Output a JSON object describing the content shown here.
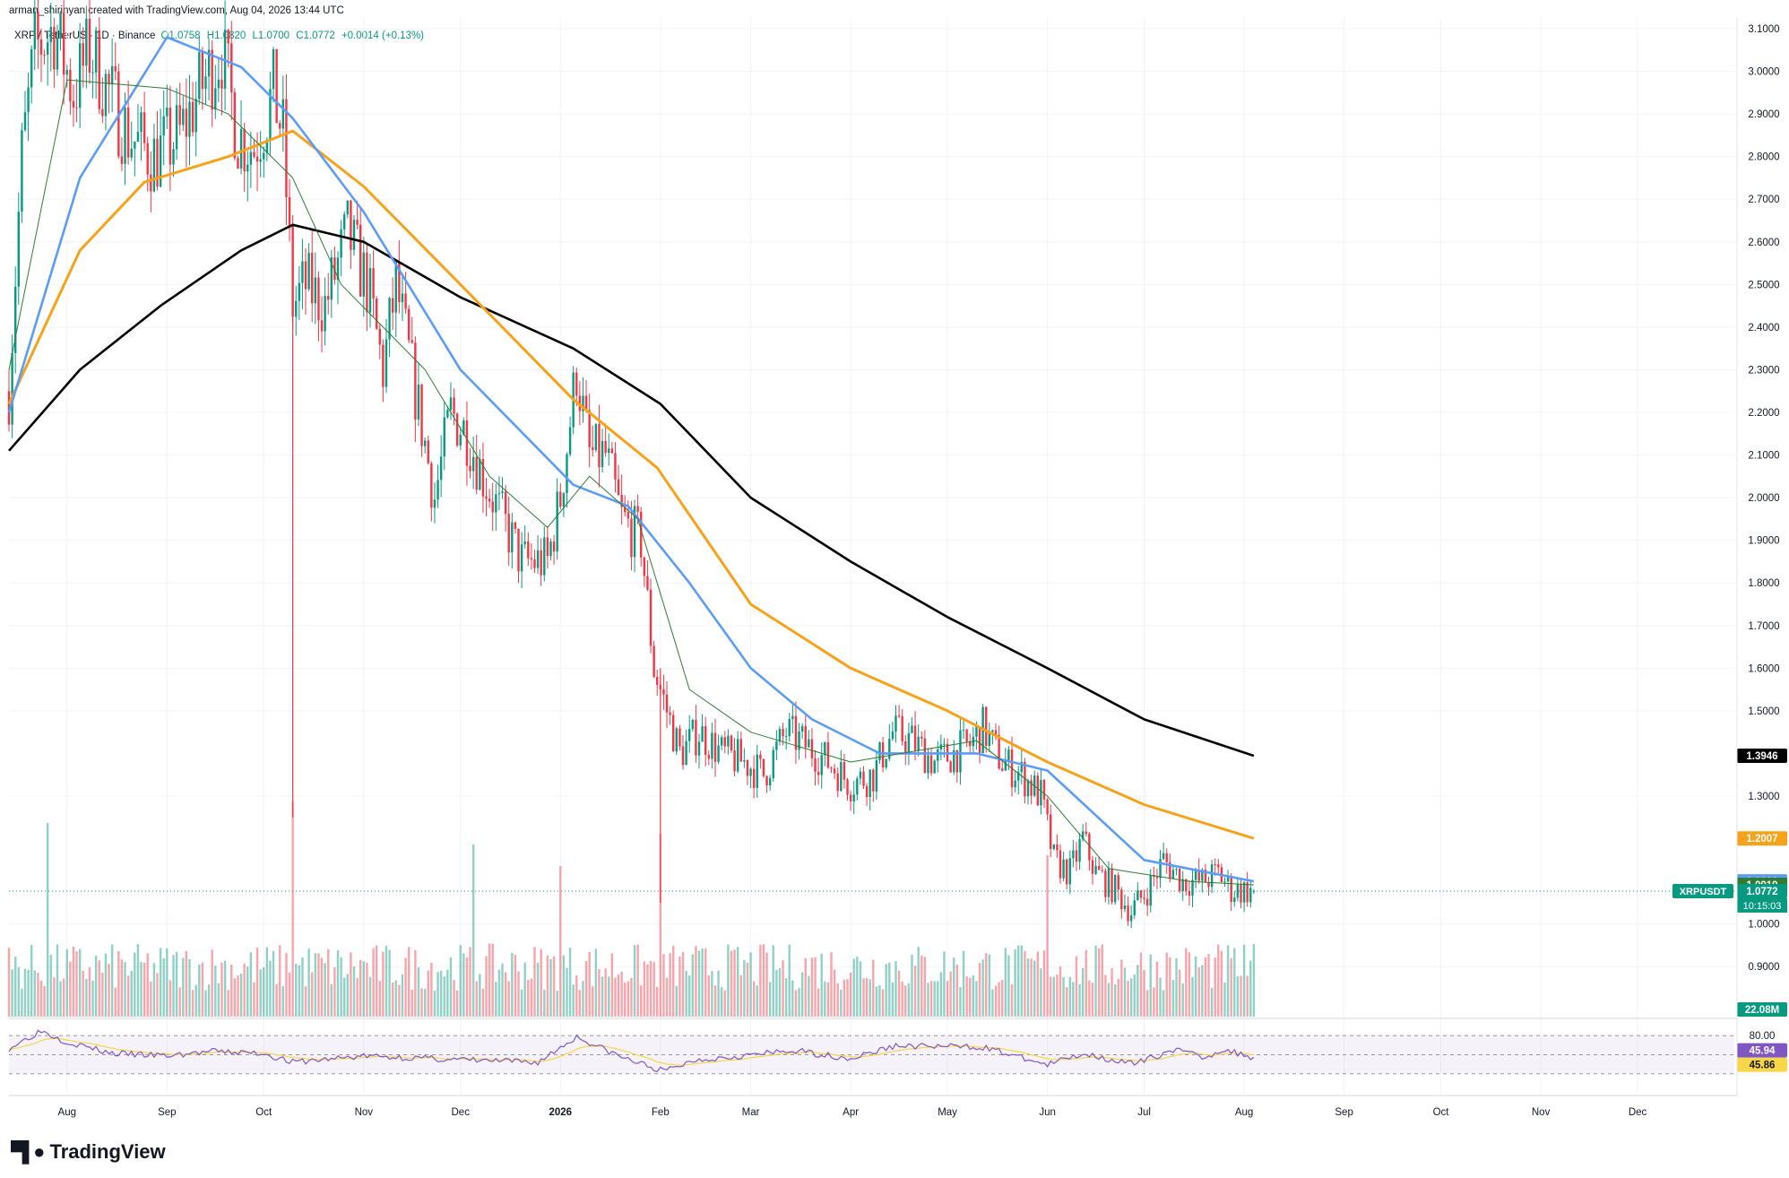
{
  "header": {
    "created_by": "arman_shirinyan created with TradingView.com, Aug 04, 2026 13:44 UTC"
  },
  "legend": {
    "symbol": "XRP / TetherUS · 1D · Binance",
    "open": "O1.0758",
    "high": "H1.0820",
    "low": "L1.0700",
    "close": "C1.0772",
    "change": "+0.0014 (+0.13%)"
  },
  "brand": {
    "name": "TradingView",
    "logo": "tv-logo-icon"
  },
  "colors": {
    "up": "#089981",
    "down": "#f23645",
    "sma200": "#000000",
    "sma100": "#f7a21b",
    "sma50": "#5b9cf6",
    "ema20": "#2e7d32",
    "rsi": "#7e57c2",
    "rsi_ma": "#f7d64a"
  },
  "chart_data": [
    {
      "type": "candlestick",
      "title": "",
      "x_axis": {
        "ticks": [
          "Aug",
          "Sep",
          "Oct",
          "Nov",
          "Dec",
          "2026",
          "Feb",
          "Mar",
          "Apr",
          "May",
          "Jun",
          "Jul",
          "Aug",
          "Sep",
          "Oct",
          "Nov",
          "Dec"
        ],
        "range": [
          "2025-07-14",
          "2026-12-31"
        ]
      },
      "y_axis": {
        "ticks": [
          "3.1000",
          "3.0000",
          "2.9000",
          "2.8000",
          "2.7000",
          "2.6000",
          "2.5000",
          "2.4000",
          "2.3000",
          "2.2000",
          "2.1000",
          "2.0000",
          "1.9000",
          "1.8000",
          "1.7000",
          "1.6000",
          "1.5000",
          "1.3000",
          "1.0000",
          "0.9000"
        ],
        "range": [
          0.85,
          3.1
        ],
        "position": "right"
      },
      "price_path": [
        [
          "2025-07-14",
          2.25
        ],
        [
          "2025-07-18",
          2.8
        ],
        [
          "2025-07-22",
          3.05
        ],
        [
          "2025-07-28",
          3.1
        ],
        [
          "2025-08-03",
          2.95
        ],
        [
          "2025-08-08",
          3.05
        ],
        [
          "2025-08-14",
          2.95
        ],
        [
          "2025-08-20",
          2.85
        ],
        [
          "2025-08-28",
          2.8
        ],
        [
          "2025-09-05",
          2.85
        ],
        [
          "2025-09-12",
          2.97
        ],
        [
          "2025-09-18",
          3.05
        ],
        [
          "2025-09-23",
          2.85
        ],
        [
          "2025-09-28",
          2.82
        ],
        [
          "2025-10-04",
          2.95
        ],
        [
          "2025-10-07",
          2.85
        ],
        [
          "2025-10-10",
          2.45
        ],
        [
          "2025-10-14",
          2.5
        ],
        [
          "2025-10-20",
          2.45
        ],
        [
          "2025-10-27",
          2.62
        ],
        [
          "2025-11-02",
          2.5
        ],
        [
          "2025-11-07",
          2.3
        ],
        [
          "2025-11-11",
          2.5
        ],
        [
          "2025-11-17",
          2.25
        ],
        [
          "2025-11-23",
          2.0
        ],
        [
          "2025-11-28",
          2.2
        ],
        [
          "2025-12-03",
          2.15
        ],
        [
          "2025-12-08",
          2.05
        ],
        [
          "2025-12-14",
          1.95
        ],
        [
          "2025-12-20",
          1.85
        ],
        [
          "2025-12-28",
          1.85
        ],
        [
          "2026-01-01",
          2.0
        ],
        [
          "2026-01-06",
          2.3
        ],
        [
          "2026-01-10",
          2.1
        ],
        [
          "2026-01-15",
          2.1
        ],
        [
          "2026-01-20",
          1.95
        ],
        [
          "2026-01-26",
          1.9
        ],
        [
          "2026-01-30",
          1.6
        ],
        [
          "2026-02-03",
          1.5
        ],
        [
          "2026-02-07",
          1.4
        ],
        [
          "2026-02-13",
          1.45
        ],
        [
          "2026-02-20",
          1.4
        ],
        [
          "2026-02-27",
          1.38
        ],
        [
          "2026-03-05",
          1.35
        ],
        [
          "2026-03-12",
          1.45
        ],
        [
          "2026-03-18",
          1.42
        ],
        [
          "2026-03-25",
          1.38
        ],
        [
          "2026-04-01",
          1.33
        ],
        [
          "2026-04-08",
          1.35
        ],
        [
          "2026-04-14",
          1.45
        ],
        [
          "2026-04-20",
          1.43
        ],
        [
          "2026-04-27",
          1.38
        ],
        [
          "2026-05-03",
          1.4
        ],
        [
          "2026-05-08",
          1.42
        ],
        [
          "2026-05-12",
          1.46
        ],
        [
          "2026-05-18",
          1.38
        ],
        [
          "2026-05-24",
          1.35
        ],
        [
          "2026-05-30",
          1.3
        ],
        [
          "2026-06-03",
          1.15
        ],
        [
          "2026-06-08",
          1.12
        ],
        [
          "2026-06-12",
          1.2
        ],
        [
          "2026-06-16",
          1.12
        ],
        [
          "2026-06-22",
          1.08
        ],
        [
          "2026-06-27",
          1.03
        ],
        [
          "2026-07-02",
          1.08
        ],
        [
          "2026-07-07",
          1.15
        ],
        [
          "2026-07-13",
          1.1
        ],
        [
          "2026-07-19",
          1.1
        ],
        [
          "2026-07-24",
          1.12
        ],
        [
          "2026-07-28",
          1.08
        ],
        [
          "2026-08-04",
          1.0772
        ]
      ],
      "moving_averages": [
        {
          "key": "sma200",
          "points": [
            [
              "2025-07-14",
              2.11
            ],
            [
              "2025-08-05",
              2.3
            ],
            [
              "2025-08-30",
              2.45
            ],
            [
              "2025-09-24",
              2.58
            ],
            [
              "2025-10-10",
              2.64
            ],
            [
              "2025-11-01",
              2.6
            ],
            [
              "2025-12-01",
              2.47
            ],
            [
              "2026-01-05",
              2.35
            ],
            [
              "2026-02-01",
              2.22
            ],
            [
              "2026-03-01",
              2.0
            ],
            [
              "2026-04-01",
              1.85
            ],
            [
              "2026-05-01",
              1.72
            ],
            [
              "2026-06-01",
              1.6
            ],
            [
              "2026-07-01",
              1.48
            ],
            [
              "2026-08-04",
              1.3946
            ]
          ]
        },
        {
          "key": "sma100",
          "points": [
            [
              "2025-07-14",
              2.22
            ],
            [
              "2025-08-05",
              2.58
            ],
            [
              "2025-08-25",
              2.74
            ],
            [
              "2025-09-20",
              2.8
            ],
            [
              "2025-10-10",
              2.86
            ],
            [
              "2025-11-01",
              2.73
            ],
            [
              "2025-12-01",
              2.5
            ],
            [
              "2026-01-05",
              2.23
            ],
            [
              "2026-01-31",
              2.07
            ],
            [
              "2026-03-01",
              1.75
            ],
            [
              "2026-04-01",
              1.6
            ],
            [
              "2026-05-01",
              1.5
            ],
            [
              "2026-06-01",
              1.38
            ],
            [
              "2026-07-01",
              1.28
            ],
            [
              "2026-08-04",
              1.2007
            ]
          ]
        },
        {
          "key": "sma50",
          "points": [
            [
              "2025-07-14",
              2.2
            ],
            [
              "2025-08-05",
              2.75
            ],
            [
              "2025-09-01",
              3.08
            ],
            [
              "2025-09-24",
              3.01
            ],
            [
              "2025-10-10",
              2.89
            ],
            [
              "2025-11-01",
              2.67
            ],
            [
              "2025-12-01",
              2.3
            ],
            [
              "2026-01-05",
              2.03
            ],
            [
              "2026-01-22",
              1.98
            ],
            [
              "2026-02-10",
              1.8
            ],
            [
              "2026-03-01",
              1.6
            ],
            [
              "2026-03-20",
              1.48
            ],
            [
              "2026-04-10",
              1.4
            ],
            [
              "2026-05-10",
              1.4
            ],
            [
              "2026-06-01",
              1.36
            ],
            [
              "2026-07-01",
              1.15
            ],
            [
              "2026-08-04",
              1.1
            ]
          ]
        },
        {
          "key": "ema20",
          "points": [
            [
              "2025-07-14",
              2.3
            ],
            [
              "2025-08-01",
              2.98
            ],
            [
              "2025-09-01",
              2.96
            ],
            [
              "2025-09-20",
              2.9
            ],
            [
              "2025-10-10",
              2.75
            ],
            [
              "2025-10-25",
              2.5
            ],
            [
              "2025-11-20",
              2.3
            ],
            [
              "2025-12-10",
              2.05
            ],
            [
              "2025-12-28",
              1.93
            ],
            [
              "2026-01-10",
              2.05
            ],
            [
              "2026-01-25",
              1.95
            ],
            [
              "2026-02-10",
              1.55
            ],
            [
              "2026-03-01",
              1.45
            ],
            [
              "2026-04-01",
              1.38
            ],
            [
              "2026-05-10",
              1.43
            ],
            [
              "2026-06-01",
              1.3
            ],
            [
              "2026-06-20",
              1.13
            ],
            [
              "2026-07-15",
              1.1
            ],
            [
              "2026-08-04",
              1.0919
            ]
          ]
        }
      ],
      "price_labels": [
        {
          "text": "1.3946",
          "value": 1.3946,
          "color": "#000000"
        },
        {
          "text": "1.2007",
          "value": 1.2007,
          "color": "#f7a21b"
        },
        {
          "text": "1.1000",
          "value": 1.1,
          "color": "#5b9cf6"
        },
        {
          "text": "1.0919",
          "value": 1.0919,
          "color": "#2e7d32"
        },
        {
          "text": "1.0772",
          "value": 1.0772,
          "color": "#089981"
        }
      ],
      "current_tag": {
        "symbol": "XRPUSDT",
        "price": "1.0772",
        "countdown": "10:15:03"
      }
    },
    {
      "type": "bar",
      "title": "Volume",
      "last_value_label": "22.08M",
      "spikes": [
        [
          "2025-10-10",
          1.0
        ],
        [
          "2026-02-01",
          0.85
        ],
        [
          "2026-01-01",
          0.7
        ],
        [
          "2025-12-05",
          0.8
        ],
        [
          "2025-07-26",
          0.9
        ],
        [
          "2026-06-01",
          0.75
        ]
      ]
    },
    {
      "type": "line",
      "title": "RSI",
      "levels": [
        80,
        50,
        20
      ],
      "y_labels": [
        "80.00"
      ],
      "last_values": [
        {
          "text": "45.94",
          "color": "#7e57c2"
        },
        {
          "text": "45.86",
          "color": "#f7d64a"
        }
      ],
      "points": [
        [
          "2025-07-14",
          60
        ],
        [
          "2025-07-24",
          88
        ],
        [
          "2025-08-01",
          70
        ],
        [
          "2025-08-15",
          52
        ],
        [
          "2025-09-01",
          48
        ],
        [
          "2025-09-15",
          55
        ],
        [
          "2025-10-01",
          52
        ],
        [
          "2025-10-10",
          38
        ],
        [
          "2025-11-01",
          48
        ],
        [
          "2025-12-01",
          42
        ],
        [
          "2025-12-25",
          38
        ],
        [
          "2026-01-06",
          78
        ],
        [
          "2026-01-20",
          46
        ],
        [
          "2026-02-02",
          24
        ],
        [
          "2026-02-12",
          42
        ],
        [
          "2026-03-15",
          56
        ],
        [
          "2026-04-01",
          44
        ],
        [
          "2026-04-15",
          64
        ],
        [
          "2026-05-12",
          62
        ],
        [
          "2026-06-01",
          34
        ],
        [
          "2026-06-12",
          52
        ],
        [
          "2026-06-28",
          35
        ],
        [
          "2026-07-10",
          58
        ],
        [
          "2026-07-20",
          46
        ],
        [
          "2026-07-25",
          58
        ],
        [
          "2026-08-04",
          45.94
        ]
      ]
    }
  ]
}
